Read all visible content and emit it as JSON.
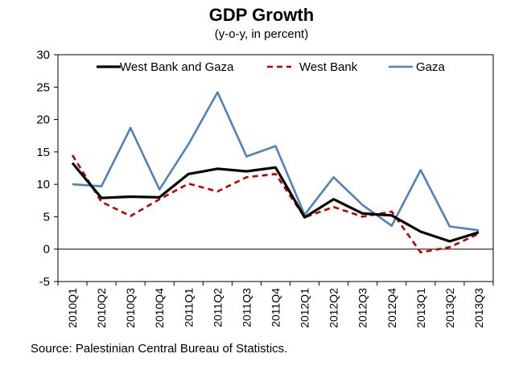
{
  "chart_data": {
    "type": "line",
    "title": "GDP Growth",
    "subtitle": "(y-o-y, in percent)",
    "xlabel": "",
    "ylabel": "",
    "categories": [
      "2010Q1",
      "2010Q2",
      "2010Q3",
      "2010Q4",
      "2011Q1",
      "2011Q2",
      "2011Q3",
      "2011Q4",
      "2012Q1",
      "2012Q2",
      "2012Q3",
      "2012Q4",
      "2013Q1",
      "2013Q2",
      "2013Q3"
    ],
    "ylim": [
      -5,
      30
    ],
    "yticks": [
      -5,
      0,
      5,
      10,
      15,
      20,
      25,
      30
    ],
    "grid": false,
    "legend_position": "top",
    "series": [
      {
        "name": "West Bank and Gaza",
        "color": "#000000",
        "dash": "solid",
        "values": [
          13.3,
          7.9,
          8.1,
          8.0,
          11.6,
          12.4,
          12.0,
          12.6,
          4.9,
          7.7,
          5.5,
          5.2,
          2.7,
          1.2,
          2.6
        ]
      },
      {
        "name": "West Bank",
        "color": "#c00000",
        "dash": "dashed",
        "values": [
          14.5,
          7.3,
          5.1,
          7.7,
          10.1,
          8.9,
          11.1,
          11.6,
          4.9,
          6.5,
          5.0,
          5.8,
          -0.5,
          0.3,
          2.4
        ]
      },
      {
        "name": "Gaza",
        "color": "#4f81bd",
        "dash": "solid",
        "values": [
          10.0,
          9.7,
          18.7,
          9.2,
          16.2,
          24.2,
          14.3,
          15.9,
          5.3,
          11.1,
          6.8,
          3.6,
          12.2,
          3.5,
          2.9
        ]
      }
    ]
  },
  "source": "Source: Palestinian Central Bureau of Statistics."
}
